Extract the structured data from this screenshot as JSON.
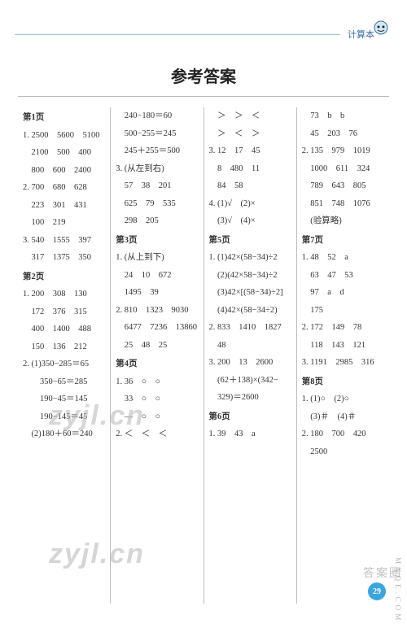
{
  "header": {
    "label": "计算本"
  },
  "title": "参考答案",
  "pageNumber": "29",
  "watermarks": {
    "zyjl": "zyjl.cn",
    "corner": "答案圈",
    "side": "MXQE.COM"
  },
  "cols": [
    [
      {
        "t": "sec",
        "v": "第1页"
      },
      {
        "t": "row",
        "v": "1. 2500　5600　5100"
      },
      {
        "t": "row",
        "v": "　2100　500　400"
      },
      {
        "t": "row",
        "v": "　800　600　2400"
      },
      {
        "t": "row",
        "v": "2. 700　680　628"
      },
      {
        "t": "row",
        "v": "　223　301　431"
      },
      {
        "t": "row",
        "v": "　100　219"
      },
      {
        "t": "row",
        "v": "3. 540　1555　397"
      },
      {
        "t": "row",
        "v": "　317　1375　350"
      },
      {
        "t": "sec",
        "v": "第2页"
      },
      {
        "t": "row",
        "v": "1. 200　308　130"
      },
      {
        "t": "row",
        "v": "　172　376　315"
      },
      {
        "t": "row",
        "v": "　400　1400　488"
      },
      {
        "t": "row",
        "v": "　150　136　212"
      },
      {
        "t": "row",
        "v": "2. (1)350−285＝65"
      },
      {
        "t": "row",
        "v": "　　350−65＝285"
      },
      {
        "t": "row",
        "v": "　　190−45＝145"
      },
      {
        "t": "row",
        "v": "　　190−145＝45"
      },
      {
        "t": "row",
        "v": "　(2)180＋60＝240"
      }
    ],
    [
      {
        "t": "row",
        "v": "　240−180＝60"
      },
      {
        "t": "row",
        "v": "　500−255＝245"
      },
      {
        "t": "row",
        "v": "　245＋255＝500"
      },
      {
        "t": "row",
        "v": "3. (从左到右)"
      },
      {
        "t": "row",
        "v": "　57　38　201"
      },
      {
        "t": "row",
        "v": "　625　79　535"
      },
      {
        "t": "row",
        "v": "　298　205"
      },
      {
        "t": "sec",
        "v": "第3页"
      },
      {
        "t": "row",
        "v": "1. (从上到下)"
      },
      {
        "t": "row",
        "v": "　24　10　672"
      },
      {
        "t": "row",
        "v": "　1495　39"
      },
      {
        "t": "row",
        "v": "2. 810　1323　9030"
      },
      {
        "t": "row",
        "v": "　6477　7236　13860"
      },
      {
        "t": "row",
        "v": "　25　48　25"
      },
      {
        "t": "sec",
        "v": "第4页"
      },
      {
        "t": "row",
        "v": "1. 36　○　○"
      },
      {
        "t": "row",
        "v": "　33　○　○"
      },
      {
        "t": "row",
        "v": "　—　○　○"
      },
      {
        "t": "row",
        "v": "2. ＜　＜　＜"
      }
    ],
    [
      {
        "t": "row",
        "v": "　＞　＞　＜"
      },
      {
        "t": "row",
        "v": "　＞　＜　＞"
      },
      {
        "t": "row",
        "v": "3. 12　17　45"
      },
      {
        "t": "row",
        "v": "　8　480　11"
      },
      {
        "t": "row",
        "v": "　84　58"
      },
      {
        "t": "row",
        "v": "4. (1)√　(2)×"
      },
      {
        "t": "row",
        "v": "　(3)√　(4)×"
      },
      {
        "t": "sec",
        "v": "第5页"
      },
      {
        "t": "row",
        "v": "1. (1)42×(58−34)÷2"
      },
      {
        "t": "row",
        "v": "　(2)(42×58−34)÷2"
      },
      {
        "t": "row",
        "v": "　(3)42×[(58−34)÷2]"
      },
      {
        "t": "row",
        "v": "　(4)42×(58−34÷2)"
      },
      {
        "t": "row",
        "v": "2. 833　1410　1827"
      },
      {
        "t": "row",
        "v": "　48"
      },
      {
        "t": "row",
        "v": "3. 200　13　2600"
      },
      {
        "t": "row",
        "v": "　(62＋138)×(342−"
      },
      {
        "t": "row",
        "v": "　329)＝2600"
      },
      {
        "t": "sec",
        "v": "第6页"
      },
      {
        "t": "row",
        "v": "1. 39　43　a"
      }
    ],
    [
      {
        "t": "row",
        "v": "　73　b　b"
      },
      {
        "t": "row",
        "v": "　45　203　76"
      },
      {
        "t": "row",
        "v": "2. 135　979　1019"
      },
      {
        "t": "row",
        "v": "　1000　611　324"
      },
      {
        "t": "row",
        "v": "　789　643　805"
      },
      {
        "t": "row",
        "v": "　851　748　1076"
      },
      {
        "t": "row",
        "v": "　(验算略)"
      },
      {
        "t": "sec",
        "v": "第7页"
      },
      {
        "t": "row",
        "v": "1. 48　52　a"
      },
      {
        "t": "row",
        "v": "　63　47　53"
      },
      {
        "t": "row",
        "v": "　97　a　d"
      },
      {
        "t": "row",
        "v": "　175"
      },
      {
        "t": "row",
        "v": "2. 172　149　78"
      },
      {
        "t": "row",
        "v": "　118　143　121"
      },
      {
        "t": "row",
        "v": "3. 1191　2985　316"
      },
      {
        "t": "sec",
        "v": "第8页"
      },
      {
        "t": "row",
        "v": "1. (1)○　(2)○"
      },
      {
        "t": "row",
        "v": "　(3)＃　(4)＃"
      },
      {
        "t": "row",
        "v": "2. 180　700　420"
      },
      {
        "t": "row",
        "v": "　2500"
      }
    ]
  ]
}
